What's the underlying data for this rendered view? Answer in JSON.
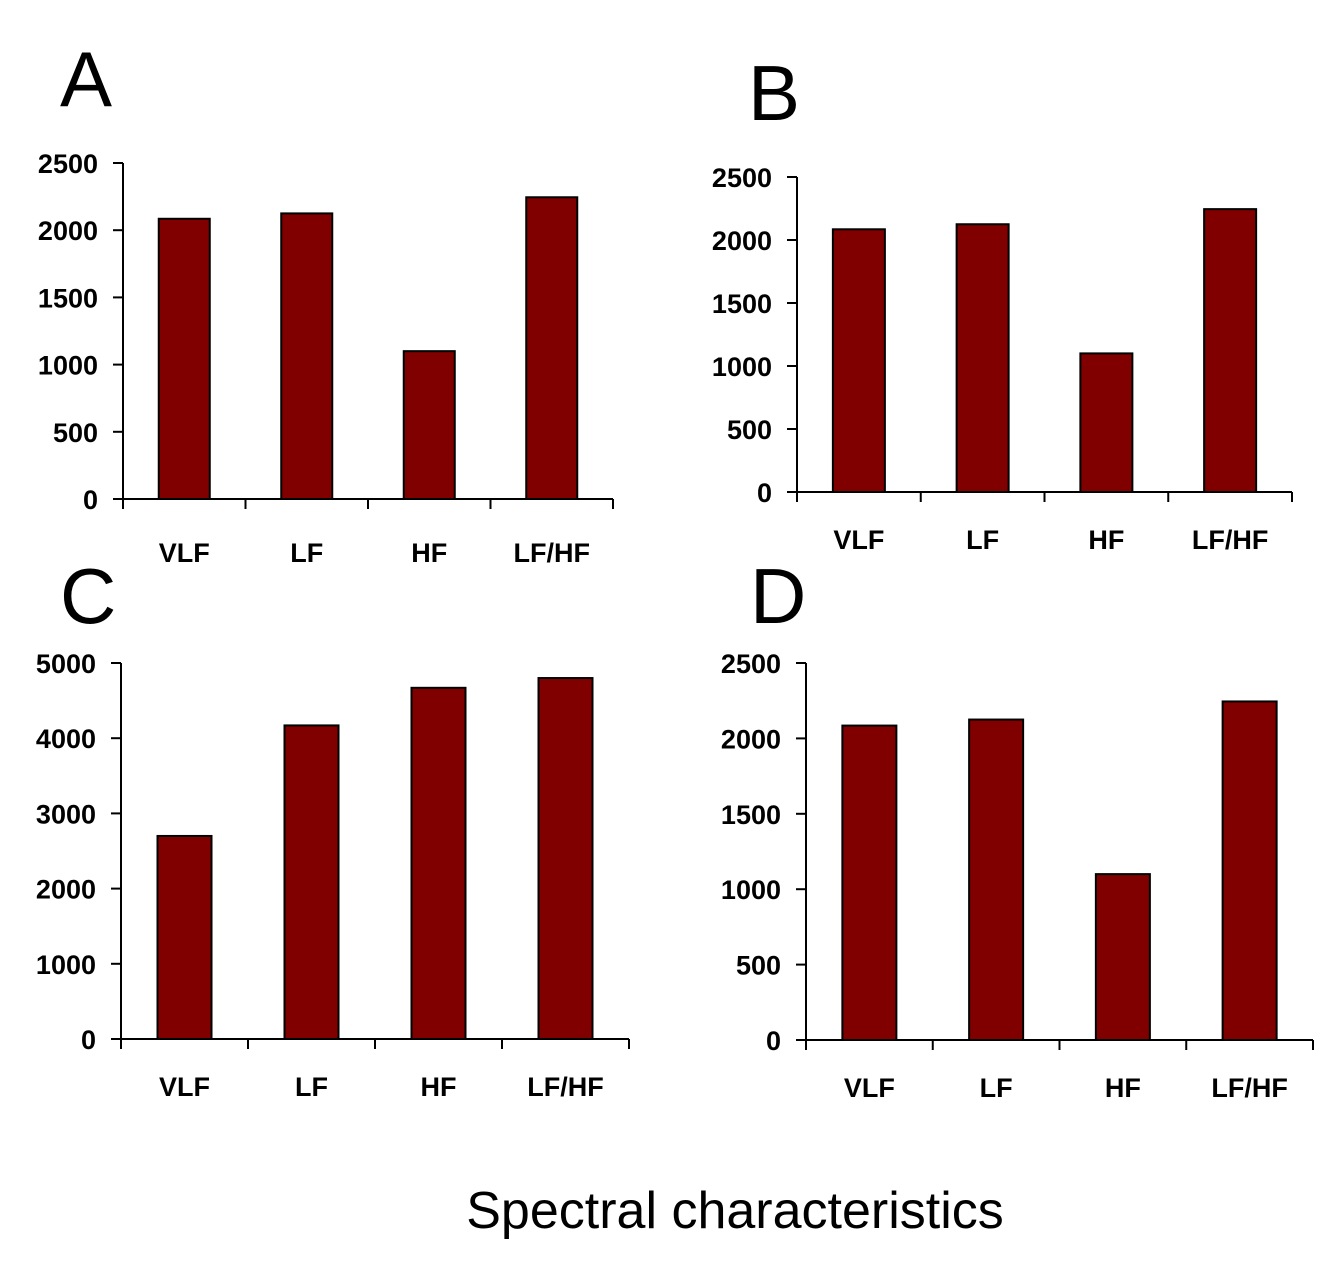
{
  "figure": {
    "xlabel": "Spectral characteristics",
    "bar_color": "#800000",
    "bar_stroke": "#000000"
  },
  "chart_data": [
    {
      "panel": "A",
      "type": "bar",
      "categories": [
        "VLF",
        "LF",
        "HF",
        "LF/HF"
      ],
      "values": [
        2085,
        2125,
        1100,
        2245
      ],
      "yticks": [
        0,
        500,
        1000,
        1500,
        2000,
        2500
      ],
      "ylim": [
        0,
        2500
      ],
      "xlabel": "",
      "ylabel": ""
    },
    {
      "panel": "B",
      "type": "bar",
      "categories": [
        "VLF",
        "LF",
        "HF",
        "LF/HF"
      ],
      "values": [
        2085,
        2125,
        1100,
        2245
      ],
      "yticks": [
        0,
        500,
        1000,
        1500,
        2000,
        2500
      ],
      "ylim": [
        0,
        2500
      ],
      "xlabel": "",
      "ylabel": ""
    },
    {
      "panel": "C",
      "type": "bar",
      "categories": [
        "VLF",
        "LF",
        "HF",
        "LF/HF"
      ],
      "values": [
        2700,
        4170,
        4670,
        4800
      ],
      "yticks": [
        0,
        1000,
        2000,
        3000,
        4000,
        5000
      ],
      "ylim": [
        0,
        5000
      ],
      "xlabel": "",
      "ylabel": ""
    },
    {
      "panel": "D",
      "type": "bar",
      "categories": [
        "VLF",
        "LF",
        "HF",
        "LF/HF"
      ],
      "values": [
        2085,
        2125,
        1100,
        2245
      ],
      "yticks": [
        0,
        500,
        1000,
        1500,
        2000,
        2500
      ],
      "ylim": [
        0,
        2500
      ],
      "xlabel": "",
      "ylabel": ""
    }
  ]
}
